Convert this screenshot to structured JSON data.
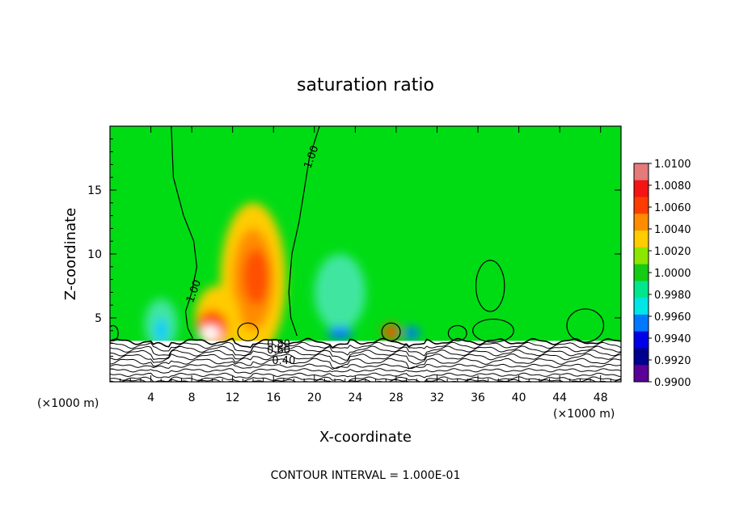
{
  "chart_data": {
    "type": "heatmap",
    "title": "saturation ratio",
    "xlabel": "X-coordinate",
    "ylabel": "Z-coordinate",
    "x_unit_left": "(×1000 m)",
    "x_unit_right": "(×1000 m)",
    "xlim": [
      0,
      50
    ],
    "ylim": [
      0,
      20
    ],
    "x_ticks": [
      "4",
      "8",
      "12",
      "16",
      "20",
      "24",
      "28",
      "32",
      "36",
      "40",
      "44",
      "48"
    ],
    "x_tick_values": [
      4,
      8,
      12,
      16,
      20,
      24,
      28,
      32,
      36,
      40,
      44,
      48
    ],
    "y_ticks": [
      "5",
      "10",
      "15"
    ],
    "y_tick_values": [
      5,
      10,
      15
    ],
    "contour_labels": [
      {
        "text": "1.00",
        "x": 20.0,
        "z": 17.5
      },
      {
        "text": "1.00",
        "x": 8.5,
        "z": 7.0
      },
      {
        "text": "0.80",
        "x": 16.5,
        "z": 2.7
      },
      {
        "text": "0.60",
        "x": 16.5,
        "z": 2.2
      },
      {
        "text": "0.40",
        "x": 17.0,
        "z": 1.4
      }
    ],
    "contour_interval_label": "CONTOUR INTERVAL = 1.000E-01",
    "colorbar": {
      "labels": [
        "1.0100",
        "1.0080",
        "1.0060",
        "1.0040",
        "1.0020",
        "1.0000",
        "0.9980",
        "0.9960",
        "0.9940",
        "0.9920",
        "0.9900"
      ],
      "colors": [
        "#e47a7a",
        "#f41414",
        "#ff3c00",
        "#ff8c00",
        "#ffcc00",
        "#8ce600",
        "#14cc14",
        "#00e68c",
        "#00e6e6",
        "#0078ff",
        "#0000e6",
        "#00008c",
        "#5a0096"
      ]
    },
    "background_color": "#00dc14",
    "features": [
      {
        "type": "anomaly",
        "x": 14.0,
        "z": 8.0,
        "rx": 3.2,
        "rz": 6.0,
        "color": "#ffcc00"
      },
      {
        "type": "anomaly",
        "x": 14.0,
        "z": 8.0,
        "rx": 2.0,
        "rz": 4.0,
        "color": "#ff8c00"
      },
      {
        "type": "anomaly",
        "x": 14.3,
        "z": 8.2,
        "rx": 1.3,
        "rz": 2.2,
        "color": "#ff5000"
      },
      {
        "type": "anomaly",
        "x": 10.5,
        "z": 5.0,
        "rx": 2.2,
        "rz": 2.5,
        "color": "#ffcc00"
      },
      {
        "type": "anomaly",
        "x": 10.0,
        "z": 4.3,
        "rx": 1.5,
        "rz": 1.3,
        "color": "#ff5000"
      },
      {
        "type": "anomaly",
        "x": 9.8,
        "z": 3.8,
        "rx": 1.0,
        "rz": 0.6,
        "color": "#ffffff"
      },
      {
        "type": "anomaly",
        "x": 27.5,
        "z": 3.9,
        "rx": 0.8,
        "rz": 0.6,
        "color": "#ff5000"
      },
      {
        "type": "anomaly",
        "x": 22.5,
        "z": 7.0,
        "rx": 2.5,
        "rz": 3.0,
        "color": "#40e6a0"
      },
      {
        "type": "anomaly",
        "x": 5.0,
        "z": 4.5,
        "rx": 1.6,
        "rz": 2.0,
        "color": "#40e6a0"
      },
      {
        "type": "anomaly",
        "x": 5.0,
        "z": 4.0,
        "rx": 0.6,
        "rz": 1.0,
        "color": "#00c8ff"
      },
      {
        "type": "anomaly",
        "x": 22.5,
        "z": 3.8,
        "rx": 1.2,
        "rz": 0.5,
        "color": "#0078ff"
      },
      {
        "type": "anomaly",
        "x": 29.5,
        "z": 3.8,
        "rx": 0.8,
        "rz": 0.5,
        "color": "#0078ff"
      }
    ],
    "grid": false,
    "legend": "right colorbar"
  }
}
